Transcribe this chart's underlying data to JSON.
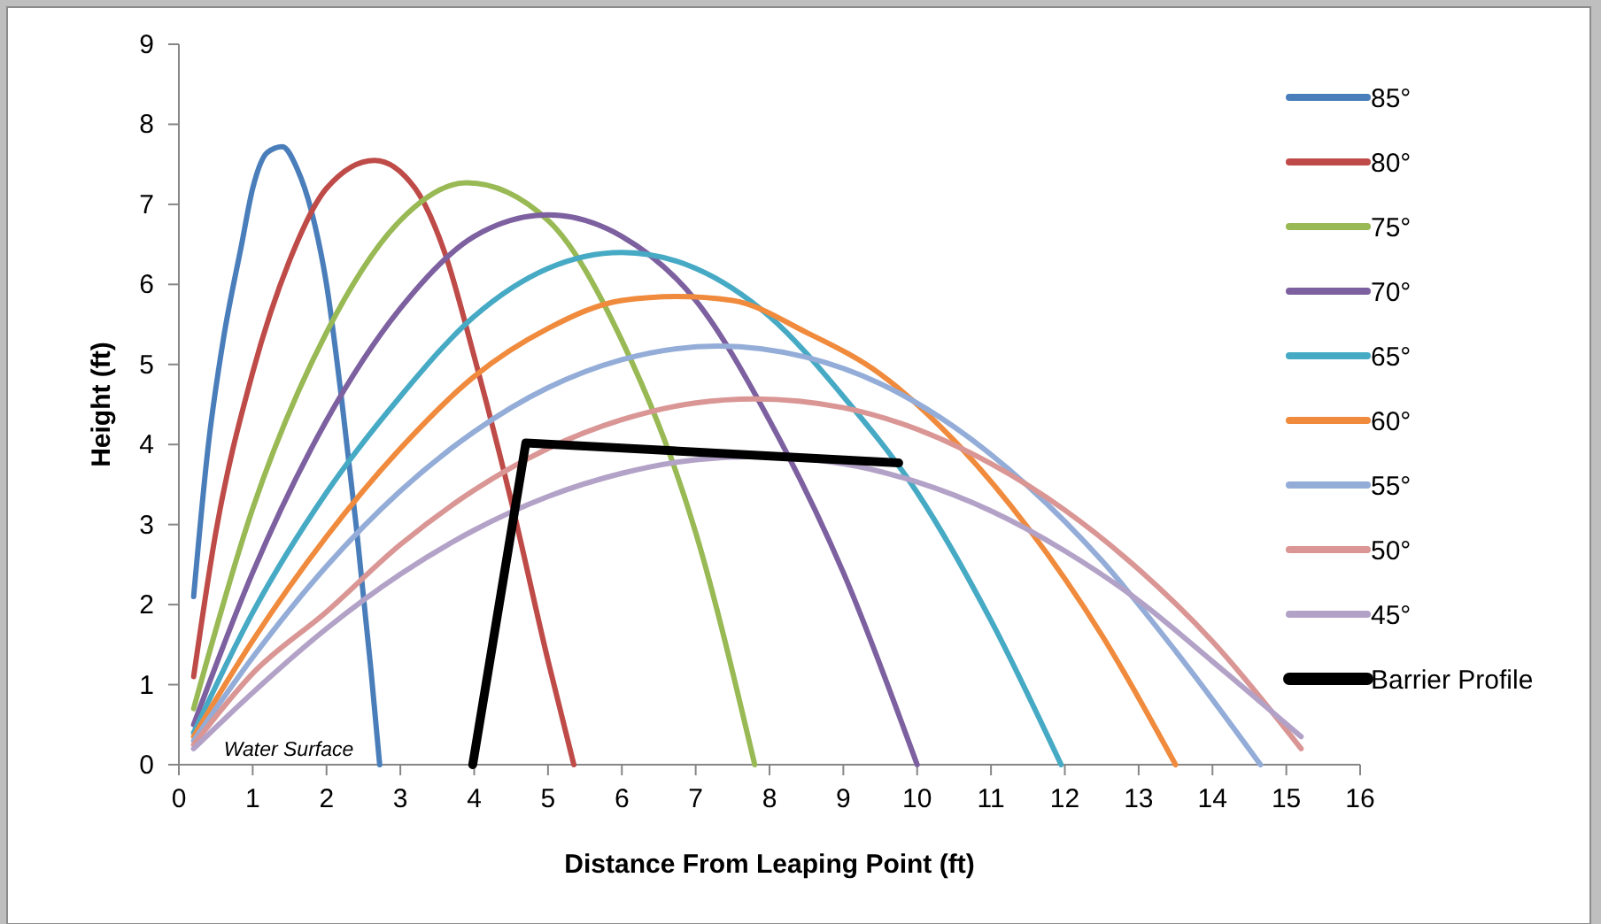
{
  "chart_data": {
    "type": "line",
    "xlabel": "Distance From Leaping Point (ft)",
    "ylabel": "Height (ft)",
    "xlim": [
      0,
      16
    ],
    "xticks": [
      0,
      1,
      2,
      3,
      4,
      5,
      6,
      7,
      8,
      9,
      10,
      11,
      12,
      13,
      14,
      15,
      16
    ],
    "ylim": [
      0,
      9
    ],
    "yticks": [
      0,
      1,
      2,
      3,
      4,
      5,
      6,
      7,
      8,
      9
    ],
    "grid": false,
    "legend": "right",
    "marker": "none",
    "line_style": "solid",
    "annotations": [
      "Water Surface"
    ],
    "series": [
      {
        "name": "85°",
        "color": "#4a7ebb",
        "x": [
          0.2,
          0.4,
          0.6,
          0.85,
          1.0,
          1.2,
          1.4,
          1.6,
          1.8,
          2.0,
          2.2,
          2.4,
          2.6,
          2.72
        ],
        "values": [
          2.1,
          4.0,
          5.3,
          6.5,
          7.2,
          7.65,
          7.72,
          7.45,
          6.9,
          6.0,
          4.6,
          3.0,
          1.2,
          0
        ]
      },
      {
        "name": "80°",
        "color": "#be4b48",
        "x": [
          0.2,
          0.5,
          1.0,
          1.5,
          2.0,
          2.65,
          3.2,
          3.6,
          4.0,
          4.5,
          5.0,
          5.35
        ],
        "values": [
          1.1,
          2.9,
          4.9,
          6.3,
          7.2,
          7.55,
          7.2,
          6.4,
          5.1,
          3.3,
          1.3,
          0
        ]
      },
      {
        "name": "75°",
        "color": "#98b954",
        "x": [
          0.2,
          1,
          2,
          3,
          3.9,
          5,
          6,
          7,
          7.8
        ],
        "values": [
          0.7,
          3.2,
          5.4,
          6.8,
          7.27,
          6.8,
          5.3,
          2.9,
          0
        ]
      },
      {
        "name": "70°",
        "color": "#7d60a0",
        "x": [
          0.2,
          1,
          2,
          3,
          4,
          5,
          6,
          7,
          8,
          9,
          10
        ],
        "values": [
          0.5,
          2.4,
          4.3,
          5.7,
          6.6,
          6.87,
          6.6,
          5.8,
          4.3,
          2.4,
          0
        ]
      },
      {
        "name": "65°",
        "color": "#46aac5",
        "x": [
          0.2,
          1,
          2,
          3,
          4,
          5,
          6,
          7,
          8,
          9,
          10,
          11,
          11.95
        ],
        "values": [
          0.4,
          1.9,
          3.4,
          4.6,
          5.6,
          6.2,
          6.4,
          6.2,
          5.6,
          4.6,
          3.4,
          1.8,
          0
        ]
      },
      {
        "name": "60°",
        "color": "#f08a3c",
        "x": [
          0.2,
          1,
          2,
          3,
          4,
          5,
          6,
          6.75,
          7.5,
          8.5,
          9.5,
          10.5,
          11.5,
          12.5,
          13.5
        ],
        "values": [
          0.35,
          1.55,
          2.85,
          3.95,
          4.85,
          5.45,
          5.8,
          5.85,
          5.8,
          5.4,
          4.88,
          4.05,
          2.96,
          1.62,
          0
        ]
      },
      {
        "name": "55°",
        "color": "#93add8",
        "x": [
          0.2,
          1,
          2,
          3,
          4,
          5,
          6,
          7.3,
          8.5,
          9.5,
          10.5,
          11.5,
          12.5,
          13.5,
          14.65
        ],
        "values": [
          0.3,
          1.34,
          2.48,
          3.42,
          4.16,
          4.71,
          5.06,
          5.23,
          5.09,
          4.76,
          4.22,
          3.48,
          2.55,
          1.42,
          0
        ]
      },
      {
        "name": "50°",
        "color": "#d99694",
        "x": [
          0.2,
          1,
          2,
          3,
          4,
          5,
          6,
          7,
          7.8,
          9,
          10,
          11,
          12,
          13,
          14,
          15.2
        ],
        "values": [
          0.25,
          1.14,
          1.91,
          2.75,
          3.43,
          3.95,
          4.31,
          4.52,
          4.57,
          4.46,
          4.19,
          3.76,
          3.18,
          2.44,
          1.54,
          0.2
        ]
      },
      {
        "name": "45°",
        "color": "#b3a2c7",
        "x": [
          0.2,
          1,
          2,
          3,
          4,
          5,
          6,
          7,
          7.8,
          9,
          10,
          11,
          12,
          13,
          14,
          15.2
        ],
        "values": [
          0.2,
          0.9,
          1.7,
          2.38,
          2.93,
          3.35,
          3.64,
          3.81,
          3.85,
          3.76,
          3.53,
          3.17,
          2.67,
          2.05,
          1.29,
          0.35
        ]
      },
      {
        "name": "Barrier Profile",
        "color": "#000000",
        "x": [
          3.98,
          4.7,
          9.75
        ],
        "values": [
          0,
          4.02,
          3.77
        ]
      }
    ]
  }
}
